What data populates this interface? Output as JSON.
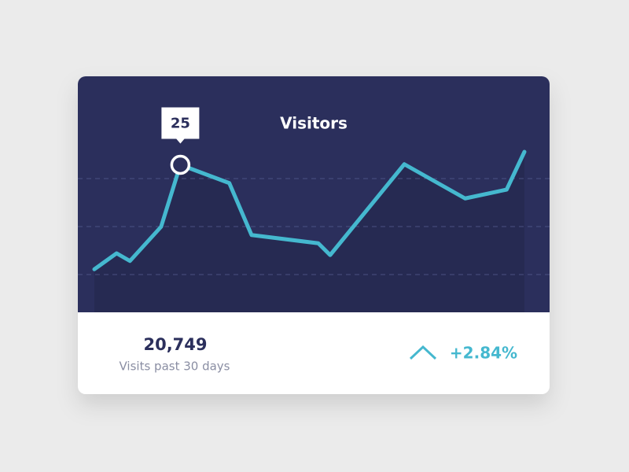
{
  "chart_data": {
    "type": "line",
    "title": "Visitors",
    "x": [
      1,
      2.5,
      3.4,
      5.5,
      6.8,
      10.1,
      11.6,
      16.1,
      16.9,
      21.9,
      26,
      28.8,
      30
    ],
    "values": [
      7.3,
      10,
      8.7,
      14.5,
      25,
      21.9,
      13.1,
      11.7,
      9.7,
      25.1,
      19.3,
      20.8,
      27.2
    ],
    "xlim": [
      1,
      30
    ],
    "ylim": [
      0,
      40
    ],
    "color": "#45b8cf",
    "grid": true,
    "highlight_index": 4
  },
  "stats": {
    "total": "20,749",
    "caption": "Visits past 30 days",
    "change": "+2.84%"
  }
}
